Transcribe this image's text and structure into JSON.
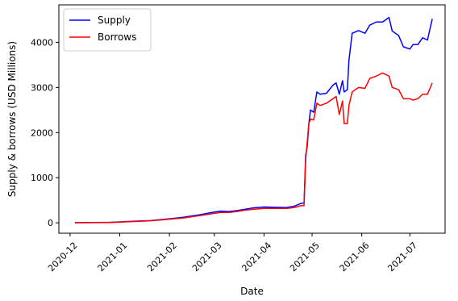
{
  "chart_data": {
    "type": "line",
    "title": "",
    "xlabel": "Date",
    "ylabel": "Supply & borrows (USD Millions)",
    "x_axis_type": "date",
    "xlim": [
      "2020-11-24",
      "2021-07-23"
    ],
    "ylim": [
      -230,
      4830
    ],
    "x_ticks": [
      "2020-12-01",
      "2021-01-01",
      "2021-02-01",
      "2021-03-01",
      "2021-04-01",
      "2021-05-01",
      "2021-06-01",
      "2021-07-01"
    ],
    "x_tick_labels": [
      "2020-12",
      "2021-01",
      "2021-02",
      "2021-03",
      "2021-04",
      "2021-05",
      "2021-06",
      "2021-07"
    ],
    "y_ticks": [
      0,
      1000,
      2000,
      3000,
      4000
    ],
    "y_tick_labels": [
      "0",
      "1000",
      "2000",
      "3000",
      "4000"
    ],
    "grid": false,
    "legend": {
      "position": "top-left"
    },
    "series": [
      {
        "name": "Supply",
        "color": "#0000ff",
        "points": [
          [
            "2020-12-04",
            5
          ],
          [
            "2020-12-15",
            8
          ],
          [
            "2020-12-25",
            10
          ],
          [
            "2021-01-01",
            20
          ],
          [
            "2021-01-10",
            35
          ],
          [
            "2021-01-20",
            50
          ],
          [
            "2021-02-01",
            90
          ],
          [
            "2021-02-10",
            125
          ],
          [
            "2021-02-20",
            180
          ],
          [
            "2021-03-01",
            240
          ],
          [
            "2021-03-05",
            260
          ],
          [
            "2021-03-10",
            250
          ],
          [
            "2021-03-15",
            270
          ],
          [
            "2021-03-20",
            300
          ],
          [
            "2021-03-25",
            330
          ],
          [
            "2021-04-01",
            350
          ],
          [
            "2021-04-08",
            345
          ],
          [
            "2021-04-15",
            340
          ],
          [
            "2021-04-20",
            370
          ],
          [
            "2021-04-24",
            430
          ],
          [
            "2021-04-26",
            440
          ],
          [
            "2021-04-27",
            1500
          ],
          [
            "2021-04-28",
            1700
          ],
          [
            "2021-04-29",
            2200
          ],
          [
            "2021-04-30",
            2500
          ],
          [
            "2021-05-02",
            2450
          ],
          [
            "2021-05-04",
            2900
          ],
          [
            "2021-05-06",
            2850
          ],
          [
            "2021-05-10",
            2870
          ],
          [
            "2021-05-14",
            3050
          ],
          [
            "2021-05-16",
            3100
          ],
          [
            "2021-05-18",
            2850
          ],
          [
            "2021-05-20",
            3150
          ],
          [
            "2021-05-21",
            2900
          ],
          [
            "2021-05-23",
            2950
          ],
          [
            "2021-05-24",
            3600
          ],
          [
            "2021-05-26",
            4200
          ],
          [
            "2021-05-30",
            4260
          ],
          [
            "2021-06-03",
            4200
          ],
          [
            "2021-06-06",
            4380
          ],
          [
            "2021-06-10",
            4450
          ],
          [
            "2021-06-14",
            4450
          ],
          [
            "2021-06-18",
            4550
          ],
          [
            "2021-06-20",
            4250
          ],
          [
            "2021-06-24",
            4150
          ],
          [
            "2021-06-27",
            3900
          ],
          [
            "2021-07-01",
            3850
          ],
          [
            "2021-07-03",
            3950
          ],
          [
            "2021-07-06",
            3950
          ],
          [
            "2021-07-09",
            4100
          ],
          [
            "2021-07-12",
            4050
          ],
          [
            "2021-07-15",
            4520
          ]
        ]
      },
      {
        "name": "Borrows",
        "color": "#ff0000",
        "points": [
          [
            "2020-12-04",
            3
          ],
          [
            "2020-12-15",
            5
          ],
          [
            "2020-12-25",
            8
          ],
          [
            "2021-01-01",
            15
          ],
          [
            "2021-01-10",
            30
          ],
          [
            "2021-01-20",
            45
          ],
          [
            "2021-02-01",
            80
          ],
          [
            "2021-02-10",
            110
          ],
          [
            "2021-02-20",
            160
          ],
          [
            "2021-03-01",
            210
          ],
          [
            "2021-03-05",
            230
          ],
          [
            "2021-03-10",
            230
          ],
          [
            "2021-03-15",
            250
          ],
          [
            "2021-03-20",
            280
          ],
          [
            "2021-03-25",
            300
          ],
          [
            "2021-04-01",
            320
          ],
          [
            "2021-04-08",
            320
          ],
          [
            "2021-04-15",
            320
          ],
          [
            "2021-04-20",
            340
          ],
          [
            "2021-04-24",
            380
          ],
          [
            "2021-04-26",
            380
          ],
          [
            "2021-04-27",
            1400
          ],
          [
            "2021-04-28",
            1800
          ],
          [
            "2021-04-29",
            2200
          ],
          [
            "2021-04-30",
            2300
          ],
          [
            "2021-05-02",
            2280
          ],
          [
            "2021-05-04",
            2650
          ],
          [
            "2021-05-06",
            2600
          ],
          [
            "2021-05-10",
            2650
          ],
          [
            "2021-05-14",
            2750
          ],
          [
            "2021-05-16",
            2800
          ],
          [
            "2021-05-18",
            2400
          ],
          [
            "2021-05-20",
            2700
          ],
          [
            "2021-05-21",
            2200
          ],
          [
            "2021-05-23",
            2200
          ],
          [
            "2021-05-24",
            2600
          ],
          [
            "2021-05-26",
            2900
          ],
          [
            "2021-05-30",
            3000
          ],
          [
            "2021-06-03",
            2980
          ],
          [
            "2021-06-06",
            3200
          ],
          [
            "2021-06-10",
            3250
          ],
          [
            "2021-06-14",
            3320
          ],
          [
            "2021-06-18",
            3250
          ],
          [
            "2021-06-20",
            3000
          ],
          [
            "2021-06-24",
            2950
          ],
          [
            "2021-06-27",
            2750
          ],
          [
            "2021-07-01",
            2750
          ],
          [
            "2021-07-03",
            2720
          ],
          [
            "2021-07-06",
            2750
          ],
          [
            "2021-07-09",
            2850
          ],
          [
            "2021-07-12",
            2850
          ],
          [
            "2021-07-15",
            3100
          ]
        ]
      }
    ]
  }
}
